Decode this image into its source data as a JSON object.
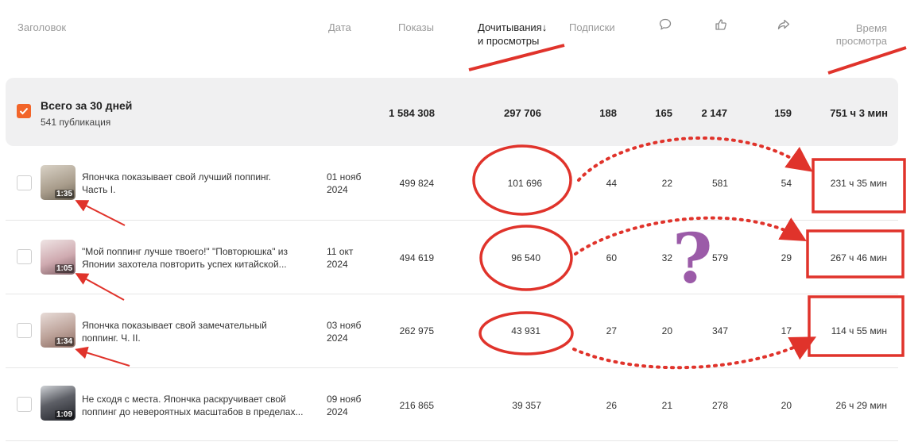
{
  "header": {
    "title": "Заголовок",
    "date": "Дата",
    "views": "Показы",
    "reads_line1": "Дочитывания↓",
    "reads_line2": "и просмотры",
    "subs": "Подписки",
    "time_line1": "Время",
    "time_line2": "просмотра",
    "icons": [
      "comment-icon",
      "like-icon",
      "share-icon"
    ]
  },
  "totals": {
    "title": "Всего за 30 дней",
    "subtitle": "541 публикация",
    "views": "1 584 308",
    "reads": "297 706",
    "subs": "188",
    "comments": "165",
    "likes": "2 147",
    "shares": "159",
    "time": "751 ч 3 мин"
  },
  "rows": [
    {
      "duration": "1:35",
      "title1": "Япончка показывает свой лучший поппинг.",
      "title2": "Часть I.",
      "date1": "01 нояб",
      "date2": "2024",
      "views": "499 824",
      "reads": "101 696",
      "subs": "44",
      "comments": "22",
      "likes": "581",
      "shares": "54",
      "time": "231 ч 35 мин"
    },
    {
      "duration": "1:05",
      "title1": "\"Мой поппинг лучше твоего!\" \"Повторюшка\" из",
      "title2": "Японии захотела повторить успех китайской...",
      "date1": "11 окт",
      "date2": "2024",
      "views": "494 619",
      "reads": "96 540",
      "subs": "60",
      "comments": "32",
      "likes": "579",
      "shares": "29",
      "time": "267 ч 46 мин"
    },
    {
      "duration": "1:34",
      "title1": "Япончка показывает свой замечательный",
      "title2": "поппинг. Ч. II.",
      "date1": "03 нояб",
      "date2": "2024",
      "views": "262 975",
      "reads": "43 931",
      "subs": "27",
      "comments": "20",
      "likes": "347",
      "shares": "17",
      "time": "114 ч 55 мин"
    },
    {
      "duration": "1:09",
      "title1": "Не сходя с места. Япончка раскручивает свой",
      "title2": "поппинг до невероятных масштабов в пределах...",
      "date1": "09 нояб",
      "date2": "2024",
      "views": "216 865",
      "reads": "39 357",
      "subs": "26",
      "comments": "21",
      "likes": "278",
      "shares": "20",
      "time": "26 ч 29 мин"
    }
  ],
  "annotation": {
    "mark": "?",
    "red": "#e0332b",
    "purple": "#9b5ba8",
    "accent": "#f2652a"
  }
}
